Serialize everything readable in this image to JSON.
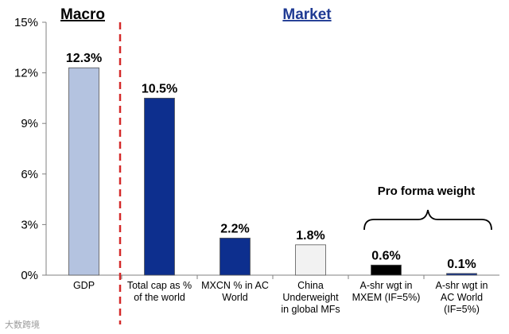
{
  "chart_data": {
    "type": "bar",
    "title": "",
    "xlabel": "",
    "ylabel": "",
    "ylim": [
      0,
      15
    ],
    "yticks": [
      "0%",
      "3%",
      "6%",
      "9%",
      "12%",
      "15%"
    ],
    "grid": false,
    "legend": "none",
    "categories": [
      "GDP",
      "Total  cap as % of the world",
      "MXCN % in AC World",
      "China Underweight in global MFs",
      "A-shr wgt in MXEM (IF=5%)",
      "A-shr wgt in AC World (IF=5%)"
    ],
    "category_lines": [
      [
        "GDP"
      ],
      [
        "Total  cap as %",
        "of the world"
      ],
      [
        "MXCN % in AC",
        "World"
      ],
      [
        "China",
        "Underweight",
        "in global MFs"
      ],
      [
        "A-shr wgt in",
        "MXEM (IF=5%)"
      ],
      [
        "A-shr wgt in",
        "AC World",
        "(IF=5%)"
      ]
    ],
    "values": [
      12.3,
      10.5,
      2.2,
      1.8,
      0.6,
      0.1
    ],
    "value_labels": [
      "12.3%",
      "10.5%",
      "2.2%",
      "1.8%",
      "0.6%",
      "0.1%"
    ],
    "bar_colors": [
      "#b4c3e0",
      "#0d2f8e",
      "#0d2f8e",
      "#f2f2f2",
      "#000000",
      "#0d2f8e"
    ],
    "annotations": {
      "macro_label": "Macro",
      "market_label": "Market",
      "pro_forma_label": "Pro forma weight",
      "watermark": "大数跨境"
    }
  },
  "colors": {
    "market_label": "#1f3a93",
    "divider": "#d42a2a",
    "axis": "#808080"
  }
}
